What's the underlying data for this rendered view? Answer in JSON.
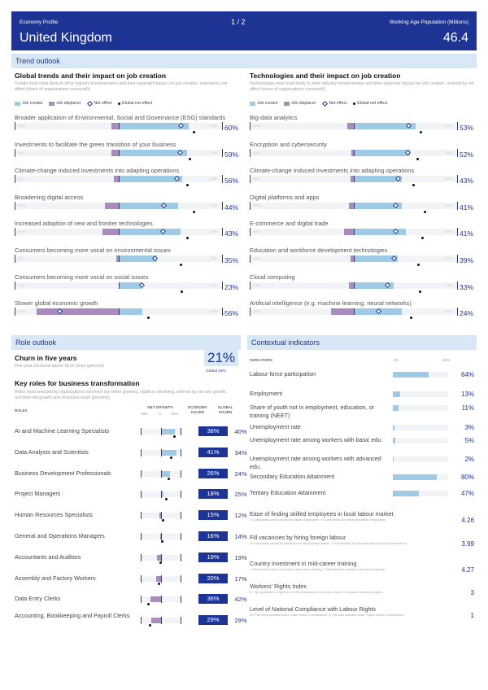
{
  "header": {
    "left_caption": "Economy Profile",
    "right_caption": "Working Age Population (Millions)",
    "country": "United Kingdom",
    "population": "46.4",
    "page": "1 / 2"
  },
  "trend_outlook": {
    "title": "Trend outlook",
    "global_trends": {
      "title": "Global trends and their impact on job creation",
      "desc": "Trends most most likely to drive industry transformation and their expected impact (on job creation, ordered by net effect (share of organizations surveyed))",
      "items": [
        {
          "label": "Broader application of Environmental, Social and Governance (ESG) standards",
          "value": "60%",
          "neg": 7,
          "pos": 67,
          "global": 77,
          "dot": 72
        },
        {
          "label": "Investments to facilitate the green transition of your business",
          "value": "59%",
          "neg": 7,
          "pos": 66,
          "global": 77,
          "dot": 68
        },
        {
          "label": "Climate-change induced investments into adapting operations",
          "value": "56%",
          "neg": 5,
          "pos": 61,
          "global": 74,
          "dot": 66
        },
        {
          "label": "Broadening digital access",
          "value": "44%",
          "neg": 13,
          "pos": 57,
          "global": 69,
          "dot": 72
        },
        {
          "label": "Increased adoption of new and frontier technologies",
          "value": "43%",
          "neg": 16,
          "pos": 59,
          "global": 71,
          "dot": 66
        },
        {
          "label": "Consumers becoming more vocal on environmental issues",
          "value": "35%",
          "neg": 2,
          "pos": 37,
          "global": 56,
          "dot": 59
        },
        {
          "label": "Consumers becoming more vocal on social issues",
          "value": "23%",
          "neg": 0,
          "pos": 23,
          "global": 52,
          "dot": 60
        },
        {
          "label": "Slower global economic growth",
          "value": "-56%",
          "neg": 79,
          "pos": 23,
          "global": 23,
          "dot": 28
        }
      ]
    },
    "technologies": {
      "title": "Technologies and their impact on job creation",
      "desc": "Technologies most most likely to drive industry transformation and their expected impact (on job creation, ordered by net effect (share of organizations surveyed))",
      "items": [
        {
          "label": "Big-data analytics",
          "value": "53%",
          "neg": 6,
          "pos": 59,
          "global": 68,
          "dot": 64
        },
        {
          "label": "Encryption and cybersecurity",
          "value": "52%",
          "neg": 2,
          "pos": 54,
          "global": 65,
          "dot": 61
        },
        {
          "label": "Climate-change induced investments into adapting operations",
          "value": "43%",
          "neg": 3,
          "pos": 46,
          "global": 60,
          "dot": 57
        },
        {
          "label": "Digital platforms and apps",
          "value": "41%",
          "neg": 5,
          "pos": 46,
          "global": 67,
          "dot": 68
        },
        {
          "label": "E-commerce and digital trade",
          "value": "41%",
          "neg": 9,
          "pos": 50,
          "global": 64,
          "dot": 66
        },
        {
          "label": "Education and workforce development technologies",
          "value": "39%",
          "neg": 3,
          "pos": 42,
          "global": 63,
          "dot": 62
        },
        {
          "label": "Cloud computing",
          "value": "33%",
          "neg": 5,
          "pos": 38,
          "global": 60,
          "dot": 63
        },
        {
          "label": "Artificial intelligence (e.g. machine learning, neural networks)",
          "value": "24%",
          "neg": 22,
          "pos": 46,
          "global": 52,
          "dot": 55
        }
      ]
    },
    "legend": {
      "job_creator": "Job creator",
      "job_displacer": "Job displacer",
      "net_effect": "Net effect",
      "global_net_effect": "Global net effect"
    },
    "scale": {
      "min": "-100%",
      "max": "100%"
    }
  },
  "role_outlook": {
    "title": "Role outlook",
    "churn_title": "Churn in five years",
    "churn_desc": "Five-year structural labour force churn (percent)",
    "churn_value": "21%",
    "global_label": "Global",
    "global_value": "23%",
    "key_roles_title": "Key roles for business transformation",
    "key_roles_desc": "Roles most selected by organizations surveyed (as either growing, stable or declining, ordered by net role growth, and their net growth and structural churn (percent))",
    "col_roles": "ROLES",
    "col_net_growth": "NET GROWTH",
    "col_net_sub": [
      "-50%",
      "0",
      "50%"
    ],
    "col_churn": "ECONOMY CHURN",
    "col_global": "GLOBAL CHURN",
    "roles": [
      {
        "name": "AI and Machine Learning Specialists",
        "churn": "38%",
        "global": "40%",
        "growth": 34,
        "dot": 32
      },
      {
        "name": "Data Analysts and Scientists",
        "churn": "41%",
        "global": "34%",
        "growth": 37,
        "dot": 24
      },
      {
        "name": "Business Development Professionals",
        "churn": "26%",
        "global": "24%",
        "growth": 22,
        "dot": 18
      },
      {
        "name": "Project Managers",
        "churn": "18%",
        "global": "25%",
        "growth": 5,
        "dot": 11
      },
      {
        "name": "Human Resources Specialists",
        "churn": "15%",
        "global": "12%",
        "growth": -4,
        "dot": 3
      },
      {
        "name": "General and Operations Managers",
        "churn": "16%",
        "global": "14%",
        "growth": -3,
        "dot": 2
      },
      {
        "name": "Accountants and Auditors",
        "churn": "19%",
        "global": "19%",
        "growth": -10,
        "dot": -3
      },
      {
        "name": "Assembly and Factory Workers",
        "churn": "20%",
        "global": "17%",
        "growth": -12,
        "dot": -6
      },
      {
        "name": "Data Entry Clerks",
        "churn": "36%",
        "global": "42%",
        "growth": -26,
        "dot": -33
      },
      {
        "name": "Accounting, Bookkeeping and Payroll Clerks",
        "churn": "29%",
        "global": "29%",
        "growth": -25,
        "dot": -29
      }
    ]
  },
  "contextual": {
    "title": "Contextual indicators",
    "col_indicators": "INDICATORS",
    "col_0": "0%",
    "col_100": "100%",
    "indicators": [
      {
        "name": "Labour force participation",
        "value": "64%",
        "pct": 64
      },
      {
        "name": "Employment",
        "value": "13%",
        "pct": 13
      },
      {
        "name": "Share of youth not in employment, education, or training (NEET)",
        "value": "11%",
        "pct": 11
      },
      {
        "name": "Unemployment rate",
        "value": "3%",
        "pct": 3
      },
      {
        "name": "Unemployment rate among workers with basic edu.",
        "value": "5%",
        "pct": 5
      },
      {
        "name": "Unemployment rate among workers with advanced edu.",
        "value": "2%",
        "pct": 2
      },
      {
        "name": "Secondary Education Attainment",
        "value": "80%",
        "pct": 80
      },
      {
        "name": "Tertiary Education Attainment",
        "value": "47%",
        "pct": 47
      }
    ],
    "indexes": [
      {
        "name": "Ease of finding skilled employees in local labour market",
        "desc": "1=Companies cannot easily find skilled employees, 7=Companies can easily find skilled employees",
        "value": "4.26"
      },
      {
        "name": "Fill vacancies by hiring foreign labour",
        "desc": "1=Companies cannot fill vacancies by hiring foreign labour, 7=Companies can fill vacancies by hiring foreign labour",
        "value": "3.99"
      },
      {
        "name": "Country investment in mid-career training",
        "desc": "1=Government does not invest in mid-career training, 7=Government invests in mid-career training",
        "value": "4.27"
      },
      {
        "name": "Workers' Rights Index",
        "desc": "5=+No guarantee of rights due to the breakdown of the rule of law, 1=Sporadic violations of rights",
        "value": "3"
      },
      {
        "name": "Level of National Compliance with Labour Rights",
        "desc": "10=The worst possible score, lower levels of compliance; 0=The best possible score, higher levels of compliance",
        "value": "1"
      }
    ]
  },
  "colors": {
    "primary": "#1e3494",
    "light_blue": "#9fcae6",
    "purple": "#a98bbd",
    "track": "#f1f3f6"
  }
}
